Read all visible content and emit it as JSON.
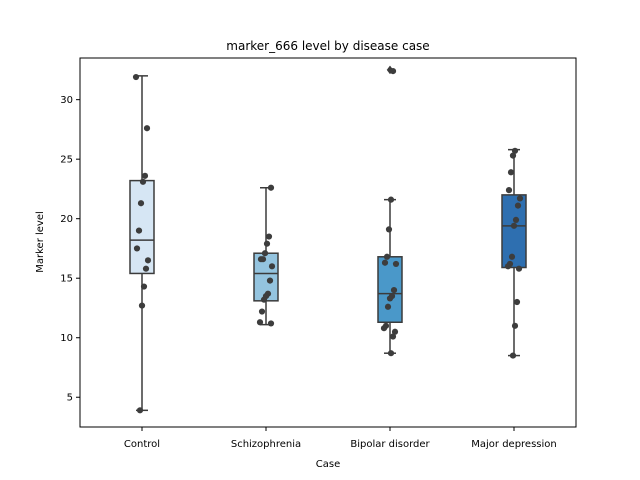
{
  "chart_data": {
    "type": "box",
    "title": "marker_666 level by disease case",
    "xlabel": "Case",
    "ylabel": "Marker level",
    "ylim": [
      2.5,
      33.5
    ],
    "yticks": [
      5,
      10,
      15,
      20,
      25,
      30
    ],
    "grid": false,
    "categories": [
      "Control",
      "Schizophrenia",
      "Bipolar disorder",
      "Major depression"
    ],
    "colors": [
      "#d6e6f4",
      "#94c4df",
      "#4a98c9",
      "#2e6fb0"
    ],
    "boxes": [
      {
        "whisker_low": 3.9,
        "q1": 15.4,
        "median": 18.2,
        "q3": 23.2,
        "whisker_high": 32.0,
        "outliers": []
      },
      {
        "whisker_low": 11.1,
        "q1": 13.1,
        "median": 15.4,
        "q3": 17.1,
        "whisker_high": 22.6,
        "outliers": []
      },
      {
        "whisker_low": 8.7,
        "q1": 11.3,
        "median": 13.7,
        "q3": 16.8,
        "whisker_high": 21.6,
        "outliers": [
          32.5
        ]
      },
      {
        "whisker_low": 8.5,
        "q1": 15.9,
        "median": 19.4,
        "q3": 22.0,
        "whisker_high": 25.8,
        "outliers": []
      }
    ],
    "points": [
      [
        31.9,
        27.6,
        23.6,
        23.1,
        21.3,
        19.0,
        17.5,
        16.5,
        15.8,
        14.3,
        12.7,
        3.9
      ],
      [
        22.6,
        18.5,
        17.9,
        17.1,
        16.6,
        16.6,
        16.0,
        14.8,
        13.7,
        13.5,
        13.2,
        12.2,
        11.3,
        11.2
      ],
      [
        32.4,
        21.6,
        19.1,
        16.8,
        16.3,
        16.2,
        14.0,
        13.5,
        13.3,
        12.6,
        11.0,
        10.8,
        10.5,
        10.1,
        8.7
      ],
      [
        25.7,
        25.3,
        23.9,
        22.4,
        21.7,
        21.1,
        19.9,
        19.4,
        16.8,
        16.2,
        16.0,
        15.8,
        13.0,
        11.0,
        8.5
      ]
    ]
  }
}
